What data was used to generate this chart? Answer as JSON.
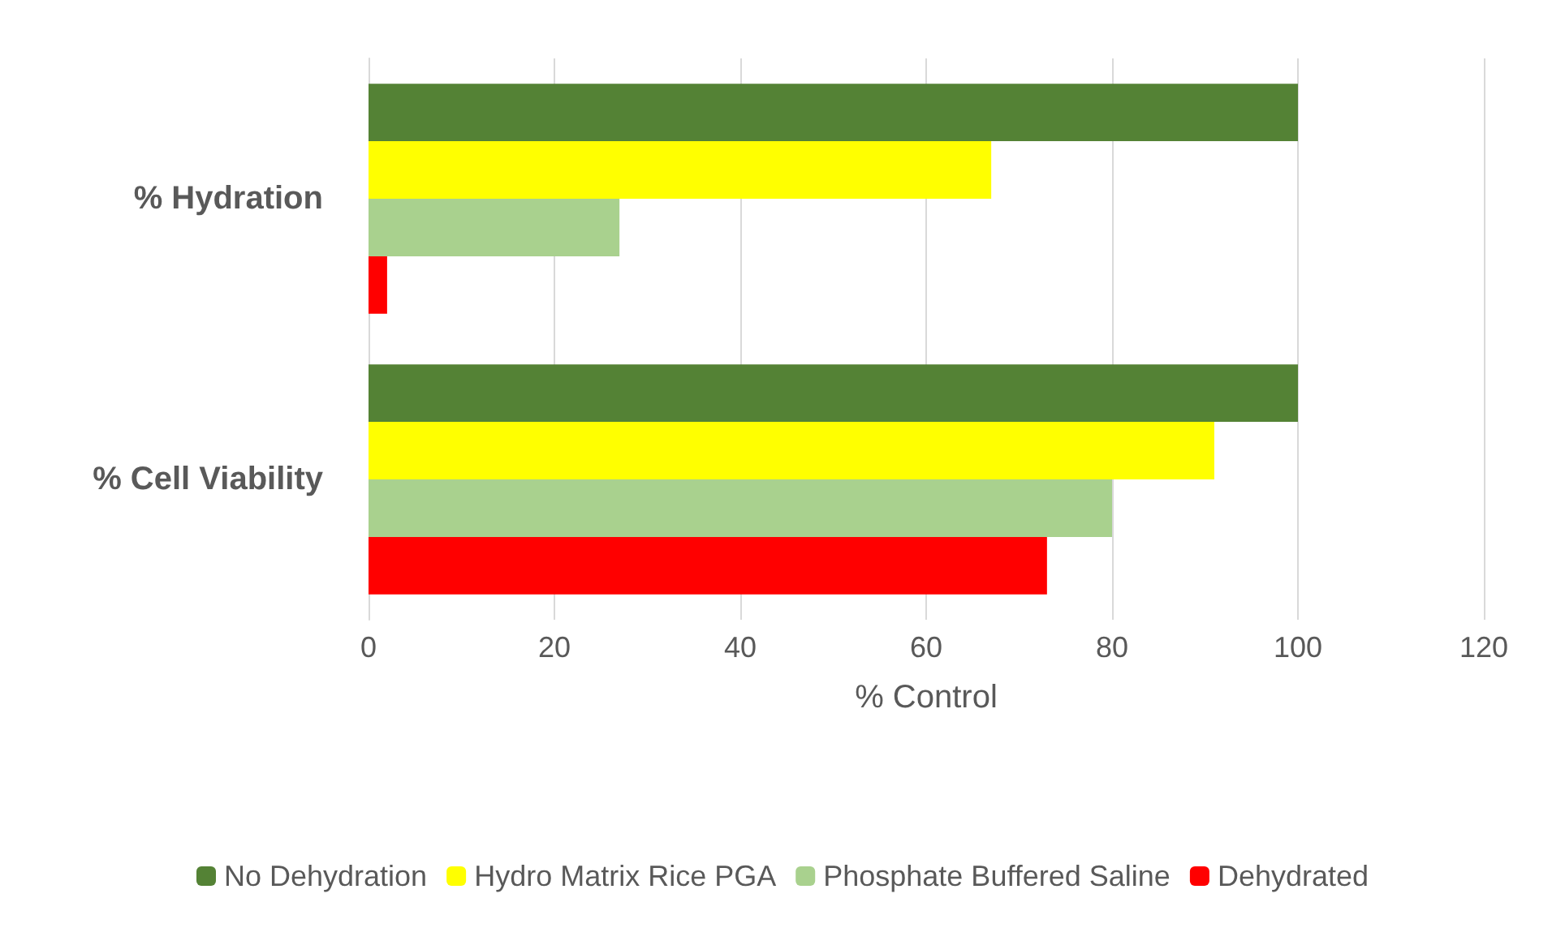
{
  "chart_data": {
    "type": "bar",
    "orientation": "horizontal",
    "xlabel": "% Control",
    "categories": [
      "% Hydration",
      "% Cell Viability"
    ],
    "series": [
      {
        "name": "No Dehydration",
        "color": "#548235",
        "values": [
          100,
          100
        ]
      },
      {
        "name": "Hydro Matrix Rice PGA",
        "color": "#ffff00",
        "values": [
          67,
          91
        ]
      },
      {
        "name": "Phosphate Buffered Saline",
        "color": "#a9d18e",
        "values": [
          27,
          80
        ]
      },
      {
        "name": "Dehydrated",
        "color": "#ff0000",
        "values": [
          2,
          73
        ]
      }
    ],
    "xlim": [
      0,
      120
    ],
    "xticks": [
      0,
      20,
      40,
      60,
      80,
      100,
      120
    ],
    "grid": "x",
    "legend": "bottom"
  }
}
